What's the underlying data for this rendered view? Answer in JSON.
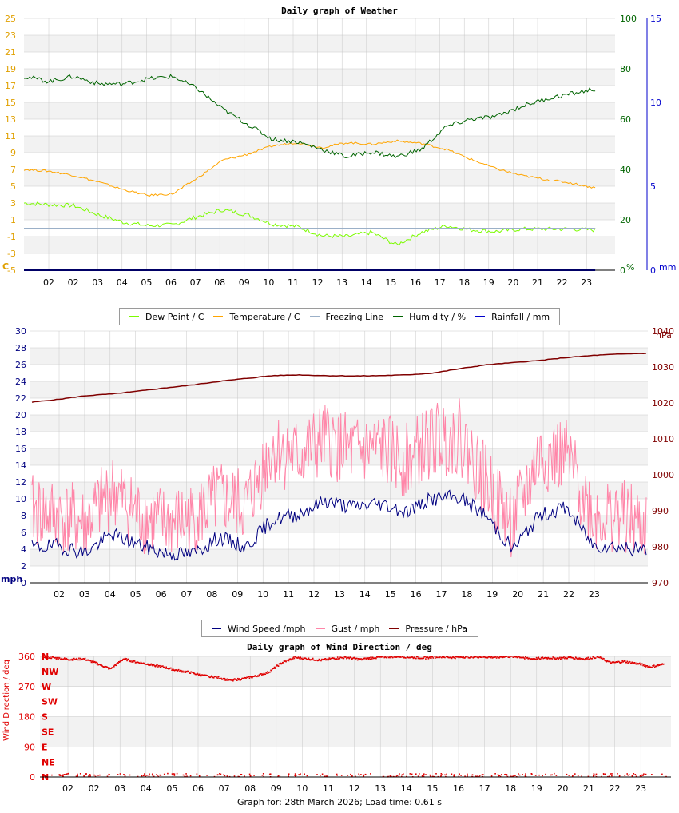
{
  "footer": "Graph for: 28th March 2026; Load time: 0.61 s",
  "colors": {
    "dew": "#7CFC00",
    "temp": "#FFA500",
    "freeze": "#9BB0C8",
    "humidity": "#006400",
    "rain": "#0000CD",
    "wind": "#000080",
    "gust": "#FF85A8",
    "pressure": "#800000",
    "dir": "#E00000",
    "grid": "#C8C8C8",
    "band": "#F2F2F2"
  },
  "chart_data": [
    {
      "type": "line",
      "title": "Daily graph of Weather",
      "x_tick_labels": [
        "02",
        "02",
        "03",
        "04",
        "05",
        "06",
        "07",
        "08",
        "09",
        "10",
        "11",
        "12",
        "13",
        "14",
        "15",
        "16",
        "17",
        "18",
        "19",
        "20",
        "21",
        "22",
        "23"
      ],
      "y_left": {
        "unit_label": "C",
        "range": [
          -5,
          25
        ],
        "ticks": [
          25,
          23,
          21,
          19,
          17,
          15,
          13,
          11,
          9,
          7,
          5,
          3,
          1,
          -1,
          -3,
          -5
        ]
      },
      "y_humidity": {
        "unit_label": "%",
        "range": [
          0,
          100
        ],
        "ticks": [
          100,
          80,
          60,
          40,
          20,
          0
        ]
      },
      "y_rain": {
        "unit_label": "mm",
        "range": [
          0,
          15
        ],
        "ticks": [
          15,
          10,
          5,
          0
        ]
      },
      "legend": [
        "Dew Point / C",
        "Temperature / C",
        "Freezing Line",
        "Humidity / %",
        "Rainfall / mm"
      ],
      "x": [
        0,
        1,
        2,
        3,
        4,
        5,
        6,
        7,
        8,
        9,
        10,
        11,
        12,
        13,
        14,
        15,
        16,
        17,
        18,
        19,
        20,
        21,
        22,
        23
      ],
      "series": [
        {
          "name": "Dew Point / C",
          "values": [
            3.0,
            2.8,
            2.7,
            1.6,
            0.7,
            0.3,
            0.4,
            1.4,
            2.2,
            1.6,
            0.5,
            0.2,
            -0.9,
            -1.0,
            -0.5,
            -2.0,
            -0.5,
            0.3,
            -0.2,
            -0.4,
            -0.1,
            -0.1,
            -0.1,
            -0.2
          ]
        },
        {
          "name": "Temperature / C",
          "values": [
            7.0,
            6.8,
            6.3,
            5.5,
            4.6,
            3.9,
            4.1,
            6.0,
            8.1,
            8.8,
            9.8,
            10.2,
            9.6,
            10.2,
            10.0,
            10.4,
            10.1,
            9.4,
            8.2,
            7.1,
            6.3,
            5.8,
            5.4,
            4.8
          ]
        },
        {
          "name": "Freezing Line",
          "values": [
            0,
            0,
            0,
            0,
            0,
            0,
            0,
            0,
            0,
            0,
            0,
            0,
            0,
            0,
            0,
            0,
            0,
            0,
            0,
            0,
            0,
            0,
            0,
            0
          ]
        },
        {
          "name": "Humidity / %",
          "values": [
            77,
            75,
            77,
            74,
            74,
            76,
            77,
            72,
            64,
            58,
            52,
            51,
            48,
            45,
            47,
            45,
            48,
            57,
            60,
            61,
            65,
            68,
            70,
            72
          ]
        },
        {
          "name": "Rainfall / mm",
          "values": [
            0,
            0,
            0,
            0,
            0,
            0,
            0,
            0,
            0,
            0,
            0,
            0,
            0,
            0,
            0,
            0,
            0,
            0,
            0,
            0,
            0,
            0,
            0,
            0
          ]
        }
      ]
    },
    {
      "type": "line",
      "title": "",
      "x_tick_labels": [
        "02",
        "03",
        "04",
        "05",
        "06",
        "07",
        "08",
        "09",
        "10",
        "11",
        "12",
        "13",
        "14",
        "15",
        "16",
        "17",
        "18",
        "19",
        "20",
        "21",
        "22",
        "23"
      ],
      "y_left": {
        "unit_label": "mph",
        "range": [
          0,
          30
        ],
        "ticks": [
          30,
          28,
          26,
          24,
          22,
          20,
          18,
          16,
          14,
          12,
          10,
          8,
          6,
          4,
          2,
          0
        ]
      },
      "y_right": {
        "unit_label": "hPa",
        "range": [
          970,
          1040
        ],
        "ticks": [
          1040,
          1030,
          1020,
          1010,
          1000,
          990,
          980,
          970
        ]
      },
      "legend": [
        "Wind Speed /mph",
        "Gust / mph",
        "Pressure / hPa"
      ],
      "x": [
        0,
        1,
        2,
        3,
        4,
        5,
        6,
        7,
        8,
        9,
        10,
        11,
        12,
        13,
        14,
        15,
        16,
        17,
        18,
        19,
        20,
        21,
        22,
        23
      ],
      "series": [
        {
          "name": "Wind Speed /mph",
          "values": [
            4.2,
            4.4,
            3.6,
            5.8,
            4.5,
            3.5,
            3.4,
            5.4,
            4.2,
            7.5,
            8.2,
            9.8,
            9.0,
            9.5,
            8.5,
            10.0,
            10.2,
            8.0,
            4.0,
            8.0,
            9.0,
            4.5,
            4.3,
            3.8
          ]
        },
        {
          "name": "Gust / mph",
          "values": [
            8.5,
            8.0,
            7.0,
            11.0,
            8.0,
            7.0,
            7.5,
            10.0,
            9.0,
            16.0,
            15.0,
            17.0,
            15.5,
            16.0,
            14.5,
            17.0,
            17.5,
            12.0,
            7.0,
            15.0,
            15.0,
            8.0,
            8.0,
            6.5
          ]
        },
        {
          "name": "Pressure / hPa",
          "values": [
            1020.2,
            1021.0,
            1022.0,
            1022.5,
            1023.3,
            1024.2,
            1025.0,
            1026.0,
            1026.8,
            1027.6,
            1027.8,
            1027.6,
            1027.5,
            1027.6,
            1027.8,
            1028.3,
            1029.5,
            1030.6,
            1031.2,
            1031.8,
            1032.6,
            1033.2,
            1033.6,
            1033.8
          ]
        }
      ]
    },
    {
      "type": "scatter",
      "title": "Daily graph of Wind Direction / deg",
      "ylabel": "Wind Direction / deg",
      "x_tick_labels": [
        "02",
        "02",
        "03",
        "04",
        "05",
        "06",
        "07",
        "08",
        "09",
        "10",
        "11",
        "12",
        "13",
        "14",
        "15",
        "16",
        "17",
        "18",
        "19",
        "20",
        "21",
        "22",
        "23"
      ],
      "y_ticks": [
        360,
        270,
        180,
        90,
        0
      ],
      "compass_labels": [
        "N",
        "NW",
        "W",
        "SW",
        "S",
        "SE",
        "E",
        "NE",
        "N"
      ],
      "range": [
        0,
        360
      ],
      "legend": [],
      "x": [
        0,
        0.5,
        1,
        1.5,
        2,
        2.5,
        3,
        3.5,
        4,
        4.5,
        5,
        5.5,
        6,
        6.5,
        7,
        7.5,
        8,
        8.5,
        9,
        9.5,
        10,
        10.5,
        11,
        11.5,
        12,
        12.5,
        13,
        13.5,
        14,
        14.5,
        15,
        15.5,
        16,
        16.5,
        17,
        17.5,
        18,
        18.5,
        19,
        19.5,
        20,
        20.5,
        21,
        21.5,
        22,
        22.5,
        23,
        23.5
      ],
      "values": [
        358,
        354,
        350,
        352,
        338,
        322,
        352,
        342,
        335,
        328,
        318,
        312,
        302,
        298,
        288,
        292,
        300,
        312,
        340,
        356,
        352,
        348,
        354,
        356,
        350,
        356,
        358,
        359,
        356,
        355,
        359,
        356,
        358,
        358,
        357,
        359,
        358,
        352,
        355,
        354,
        356,
        352,
        358,
        340,
        344,
        338,
        328,
        336
      ]
    }
  ]
}
